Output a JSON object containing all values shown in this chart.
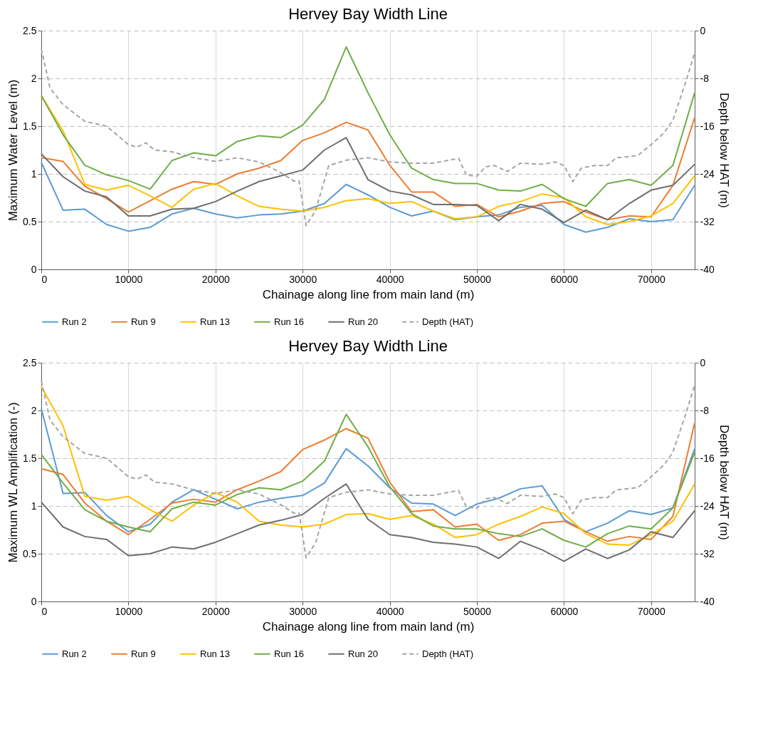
{
  "chart_data": [
    {
      "type": "line",
      "title": "Hervey Bay Width Line",
      "xlabel": "Chainage along line from main land (m)",
      "ylabel": "Maximum Water Level (m)",
      "y2label": "Depth below HAT (m)",
      "x": [
        0,
        2500,
        5000,
        7500,
        10000,
        12500,
        15000,
        17500,
        20000,
        22500,
        25000,
        27500,
        30000,
        32500,
        35000,
        37500,
        40000,
        42500,
        45000,
        47500,
        50000,
        52500,
        55000,
        57500,
        60000,
        62500,
        65000,
        67500,
        70000,
        72500,
        75000
      ],
      "xlim": [
        0,
        75000
      ],
      "xticks": [
        0,
        10000,
        20000,
        30000,
        40000,
        50000,
        60000,
        70000
      ],
      "ylim": [
        0,
        2.5
      ],
      "yticks": [
        0,
        0.5,
        1,
        1.5,
        2,
        2.5
      ],
      "y2lim": [
        -40,
        0
      ],
      "y2ticks": [
        -40,
        -32,
        -24,
        -16,
        -8,
        0
      ],
      "grid": true,
      "legend": "bottom",
      "series": [
        {
          "name": "Run 2",
          "color": "#5b9bd5",
          "values": [
            1.12,
            0.62,
            0.63,
            0.47,
            0.4,
            0.44,
            0.58,
            0.64,
            0.58,
            0.54,
            0.57,
            0.58,
            0.61,
            0.69,
            0.89,
            0.78,
            0.65,
            0.56,
            0.61,
            0.52,
            0.55,
            0.57,
            0.65,
            0.67,
            0.47,
            0.39,
            0.44,
            0.53,
            0.5,
            0.52,
            0.88
          ]
        },
        {
          "name": "Run 9",
          "color": "#ed7d31",
          "values": [
            1.17,
            1.13,
            0.87,
            0.74,
            0.6,
            0.72,
            0.84,
            0.92,
            0.89,
            1.0,
            1.06,
            1.14,
            1.35,
            1.43,
            1.54,
            1.46,
            1.09,
            0.81,
            0.81,
            0.66,
            0.68,
            0.55,
            0.61,
            0.69,
            0.71,
            0.6,
            0.52,
            0.56,
            0.55,
            0.88,
            1.59
          ]
        },
        {
          "name": "Run 13",
          "color": "#ffc000",
          "values": [
            1.82,
            1.45,
            0.89,
            0.83,
            0.88,
            0.77,
            0.65,
            0.84,
            0.9,
            0.77,
            0.66,
            0.63,
            0.61,
            0.65,
            0.72,
            0.74,
            0.69,
            0.71,
            0.61,
            0.53,
            0.55,
            0.66,
            0.71,
            0.79,
            0.75,
            0.55,
            0.47,
            0.5,
            0.56,
            0.69,
            0.98
          ]
        },
        {
          "name": "Run 16",
          "color": "#70ad47",
          "values": [
            1.82,
            1.41,
            1.09,
            0.99,
            0.93,
            0.84,
            1.14,
            1.22,
            1.19,
            1.34,
            1.4,
            1.38,
            1.51,
            1.78,
            2.33,
            1.85,
            1.41,
            1.06,
            0.94,
            0.9,
            0.9,
            0.83,
            0.82,
            0.89,
            0.74,
            0.66,
            0.9,
            0.94,
            0.88,
            1.09,
            1.85
          ]
        },
        {
          "name": "Run 20",
          "color": "#6e6e6e",
          "values": [
            1.21,
            0.97,
            0.82,
            0.76,
            0.56,
            0.56,
            0.63,
            0.64,
            0.71,
            0.82,
            0.92,
            0.98,
            1.04,
            1.25,
            1.38,
            0.94,
            0.82,
            0.78,
            0.68,
            0.68,
            0.67,
            0.51,
            0.68,
            0.63,
            0.49,
            0.62,
            0.52,
            0.69,
            0.83,
            0.88,
            1.1
          ]
        },
        {
          "name": "Depth (HAT)",
          "color": "#a5a5a5",
          "axis": "y2",
          "line_style": "dashed",
          "x": [
            0,
            1000,
            2500,
            5000,
            7500,
            10000,
            11000,
            12000,
            13000,
            15000,
            17500,
            20000,
            22500,
            25000,
            27500,
            29000,
            29600,
            30400,
            31500,
            33000,
            35000,
            37500,
            40000,
            42500,
            45000,
            47900,
            48800,
            50000,
            51000,
            52000,
            53500,
            55000,
            57500,
            59000,
            60000,
            61000,
            62000,
            63500,
            65000,
            66000,
            67500,
            68500,
            70000,
            71500,
            72500,
            74000,
            75000
          ],
          "values": [
            -3,
            -9.6,
            -12.4,
            -15.2,
            -16,
            -19.1,
            -19.5,
            -18.8,
            -20,
            -20.3,
            -21.3,
            -21.9,
            -21.3,
            -22,
            -23.8,
            -25.2,
            -25.2,
            -32.7,
            -30.1,
            -22.6,
            -21.7,
            -21.3,
            -22,
            -22.2,
            -22.2,
            -21.4,
            -24.2,
            -24.4,
            -22.8,
            -22.6,
            -23.6,
            -22.2,
            -22.4,
            -22,
            -22.6,
            -25.3,
            -23,
            -22.6,
            -22.6,
            -21.3,
            -21.1,
            -20.9,
            -19.1,
            -17.1,
            -15,
            -8.5,
            -3.7
          ]
        }
      ]
    },
    {
      "type": "line",
      "title": "Hervey Bay Width Line",
      "xlabel": "Chainage along line from main land (m)",
      "ylabel": "Maximum WL Amplification (-)",
      "y2label": "Depth below HAT (m)",
      "x": [
        0,
        2500,
        5000,
        7500,
        10000,
        12500,
        15000,
        17500,
        20000,
        22500,
        25000,
        27500,
        30000,
        32500,
        35000,
        37500,
        40000,
        42500,
        45000,
        47500,
        50000,
        52500,
        55000,
        57500,
        60000,
        62500,
        65000,
        67500,
        70000,
        72500,
        75000
      ],
      "xlim": [
        0,
        75000
      ],
      "xticks": [
        0,
        10000,
        20000,
        30000,
        40000,
        50000,
        60000,
        70000
      ],
      "ylim": [
        0,
        2.5
      ],
      "yticks": [
        0,
        0.5,
        1,
        1.5,
        2,
        2.5
      ],
      "y2lim": [
        -40,
        0
      ],
      "y2ticks": [
        -40,
        -32,
        -24,
        -16,
        -8,
        0
      ],
      "grid": true,
      "legend": "bottom",
      "series": [
        {
          "name": "Run 2",
          "color": "#5b9bd5",
          "values": [
            2.02,
            1.13,
            1.14,
            0.9,
            0.73,
            0.81,
            1.04,
            1.17,
            1.07,
            0.97,
            1.04,
            1.08,
            1.11,
            1.24,
            1.6,
            1.42,
            1.19,
            1.03,
            1.02,
            0.9,
            1.02,
            1.08,
            1.18,
            1.21,
            0.86,
            0.73,
            0.82,
            0.95,
            0.91,
            0.98,
            1.6
          ]
        },
        {
          "name": "Run 9",
          "color": "#ed7d31",
          "values": [
            1.39,
            1.33,
            1.03,
            0.84,
            0.7,
            0.86,
            1.03,
            1.07,
            1.04,
            1.17,
            1.26,
            1.36,
            1.59,
            1.69,
            1.81,
            1.71,
            1.25,
            0.94,
            0.96,
            0.78,
            0.81,
            0.64,
            0.7,
            0.82,
            0.84,
            0.73,
            0.63,
            0.68,
            0.65,
            0.89,
            1.87
          ]
        },
        {
          "name": "Run 13",
          "color": "#ffc000",
          "values": [
            2.25,
            1.84,
            1.1,
            1.06,
            1.1,
            0.96,
            0.84,
            1.01,
            1.14,
            1.04,
            0.84,
            0.8,
            0.78,
            0.81,
            0.91,
            0.92,
            0.86,
            0.9,
            0.81,
            0.67,
            0.7,
            0.81,
            0.89,
            0.99,
            0.92,
            0.71,
            0.6,
            0.59,
            0.7,
            0.84,
            1.23
          ]
        },
        {
          "name": "Run 16",
          "color": "#70ad47",
          "values": [
            1.54,
            1.24,
            0.96,
            0.84,
            0.78,
            0.73,
            0.97,
            1.04,
            1.01,
            1.12,
            1.19,
            1.17,
            1.26,
            1.47,
            1.96,
            1.62,
            1.2,
            0.92,
            0.79,
            0.76,
            0.76,
            0.71,
            0.68,
            0.76,
            0.64,
            0.57,
            0.71,
            0.79,
            0.76,
            0.98,
            1.56
          ]
        },
        {
          "name": "Run 20",
          "color": "#6e6e6e",
          "values": [
            1.04,
            0.78,
            0.68,
            0.65,
            0.48,
            0.5,
            0.57,
            0.55,
            0.62,
            0.71,
            0.8,
            0.85,
            0.91,
            1.08,
            1.23,
            0.86,
            0.7,
            0.67,
            0.62,
            0.6,
            0.57,
            0.45,
            0.63,
            0.54,
            0.42,
            0.55,
            0.45,
            0.54,
            0.73,
            0.67,
            0.95
          ]
        },
        {
          "name": "Depth (HAT)",
          "color": "#a5a5a5",
          "axis": "y2",
          "line_style": "dashed",
          "x": [
            0,
            1000,
            2500,
            5000,
            7500,
            10000,
            11000,
            12000,
            13000,
            15000,
            17500,
            20000,
            22500,
            25000,
            27500,
            29000,
            29600,
            30400,
            31500,
            33000,
            35000,
            37500,
            40000,
            42500,
            45000,
            47900,
            48800,
            50000,
            51000,
            52000,
            53500,
            55000,
            57500,
            59000,
            60000,
            61000,
            62000,
            63500,
            65000,
            66000,
            67500,
            68500,
            70000,
            71500,
            72500,
            74000,
            75000
          ],
          "values": [
            -3,
            -9.6,
            -12.4,
            -15.2,
            -16,
            -19.1,
            -19.5,
            -18.8,
            -20,
            -20.3,
            -21.3,
            -21.9,
            -21.3,
            -22,
            -23.8,
            -25.2,
            -25.2,
            -32.7,
            -30.1,
            -22.6,
            -21.7,
            -21.3,
            -22,
            -22.2,
            -22.2,
            -21.4,
            -24.2,
            -24.4,
            -22.8,
            -22.6,
            -23.6,
            -22.2,
            -22.4,
            -22,
            -22.6,
            -25.3,
            -23,
            -22.6,
            -22.6,
            -21.3,
            -21.1,
            -20.9,
            -19.1,
            -17.1,
            -15,
            -8.5,
            -3.7
          ]
        }
      ]
    }
  ]
}
